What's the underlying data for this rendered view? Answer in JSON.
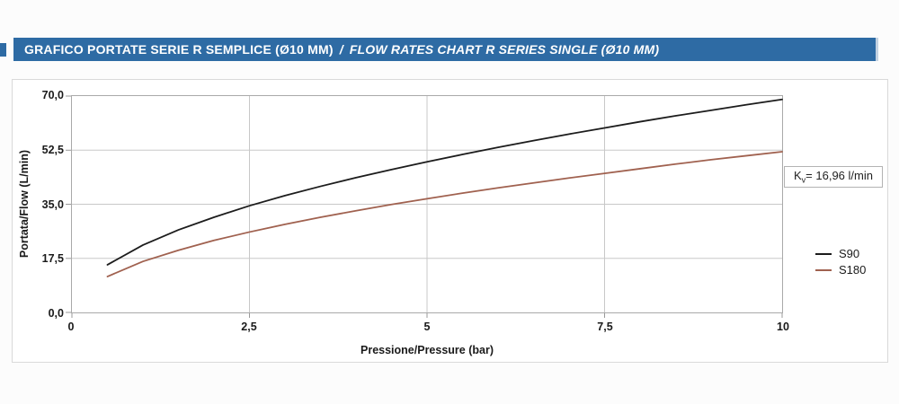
{
  "header": {
    "title_it": "GRAFICO PORTATE SERIE R SEMPLICE (Ø10 MM)",
    "separator": "/",
    "title_en": "FLOW RATES CHART R SERIES SINGLE (Ø10 MM)",
    "bar_color": "#2e6ba4"
  },
  "chart_data": {
    "type": "line",
    "title": "",
    "xlabel": "Pressione/Pressure (bar)",
    "ylabel": "Portata/Flow (L/min)",
    "xlim": [
      0,
      10
    ],
    "ylim": [
      0,
      70
    ],
    "grid": true,
    "legend_position": "right",
    "x_ticks": [
      {
        "value": 0,
        "label": "0"
      },
      {
        "value": 2.5,
        "label": "2,5"
      },
      {
        "value": 5,
        "label": "5"
      },
      {
        "value": 7.5,
        "label": "7,5"
      },
      {
        "value": 10,
        "label": "10"
      }
    ],
    "y_ticks": [
      {
        "value": 0,
        "label": "0,0"
      },
      {
        "value": 17.5,
        "label": "17,5"
      },
      {
        "value": 35,
        "label": "35,0"
      },
      {
        "value": 52.5,
        "label": "52,5"
      },
      {
        "value": 70,
        "label": "70,0"
      }
    ],
    "x": [
      0.5,
      1,
      1.5,
      2,
      2.5,
      3,
      3.5,
      4,
      4.5,
      5,
      5.5,
      6,
      6.5,
      7,
      7.5,
      8,
      8.5,
      9,
      9.5,
      10
    ],
    "series": [
      {
        "name": "S90",
        "color": "#1c1c1c",
        "values": [
          15.4,
          21.8,
          26.7,
          30.8,
          34.5,
          37.8,
          40.8,
          43.6,
          46.2,
          48.7,
          51.1,
          53.4,
          55.6,
          57.7,
          59.7,
          61.7,
          63.6,
          65.4,
          67.2,
          68.9
        ]
      },
      {
        "name": "S180",
        "color": "#a0614f",
        "values": [
          11.6,
          16.5,
          20.1,
          23.3,
          26.0,
          28.5,
          30.8,
          32.9,
          34.9,
          36.8,
          38.6,
          40.3,
          41.9,
          43.5,
          45.0,
          46.5,
          48.0,
          49.4,
          50.7,
          52.0
        ]
      }
    ],
    "annotation": {
      "k": "K",
      "k_sub": "v",
      "rest": "= 16,96 l/min"
    },
    "grid_color": "#c8c8c8",
    "tick_color": "#999999"
  }
}
